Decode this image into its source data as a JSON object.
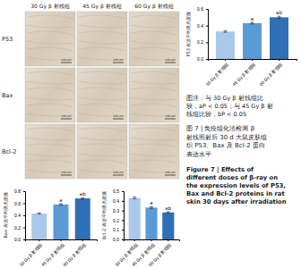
{
  "chart_data": [
    {
      "type": "bar",
      "y_label": "P53 表达平均吸光度值",
      "categories": [
        "30 Gy β 射线组",
        "45 Gy β 射线组",
        "60 Gy β 射线组"
      ],
      "values": [
        0.33,
        0.43,
        0.5
      ],
      "errors": [
        0.01,
        0.01,
        0.012
      ],
      "annotations": [
        null,
        "a",
        "ab"
      ],
      "colors": [
        "#a9c8ea",
        "#5b9bd5",
        "#2f6fb5"
      ],
      "ylim": [
        0,
        0.6
      ],
      "yticks": [
        {
          "value": 0,
          "label": "0.0"
        },
        0.2,
        0.4,
        0.6
      ]
    },
    {
      "type": "bar",
      "y_label": "Bax 表达平均吸光度值",
      "categories": [
        "30 Gy β 射线组",
        "45 Gy β 射线组",
        "60 Gy β 射线组"
      ],
      "values": [
        0.43,
        0.58,
        0.68
      ],
      "errors": [
        0.01,
        0.012,
        0.012
      ],
      "annotations": [
        null,
        "a",
        "ab"
      ],
      "colors": [
        "#a9c8ea",
        "#5b9bd5",
        "#2f6fb5"
      ],
      "ylim": [
        0,
        0.8
      ],
      "yticks": [
        {
          "value": 0,
          "label": "0.0"
        },
        0.2,
        0.4,
        0.6,
        0.8
      ]
    },
    {
      "type": "bar",
      "y_label": "Bcl-2 表达平均吸光度值",
      "categories": [
        "30 Gy β 射线组",
        "45 Gy β 射线组",
        "60 Gy β 射线组"
      ],
      "values": [
        0.43,
        0.33,
        0.28
      ],
      "errors": [
        0.01,
        0.008,
        0.008
      ],
      "annotations": [
        null,
        "a",
        "ab"
      ],
      "colors": [
        "#a9c8ea",
        "#5b9bd5",
        "#2f6fb5"
      ],
      "ylim": [
        0,
        0.5
      ],
      "yticks": [
        {
          "value": 0,
          "label": "0.0"
        },
        0.1,
        0.2,
        0.3,
        0.4,
        0.5
      ]
    }
  ],
  "micrographs": {
    "columns": [
      "30 Gy β 射线组",
      "45 Gy β 射线组",
      "60 Gy β 射线组"
    ],
    "rows": [
      "P53",
      "Bax",
      "Bcl-2"
    ],
    "scale_bar": "100 μm"
  },
  "note": [
    "图注：与 30 Gy β 射线组比",
    "较，aP < 0.05；与 45 Gy β 射",
    "线组比较，bP < 0.05"
  ],
  "caption_cn": [
    "图 7 | 免疫组化法检测 β",
    "射线照射后 30 d 大鼠皮肤组",
    "织 P53、Bax 及 Bcl-2 蛋白",
    "表达水平"
  ],
  "caption_en": [
    "Figure 7 | Effects of",
    "different doses of β-ray on",
    "the expression levels of P53,",
    "Bax and Bcl-2 proteins in rat",
    "skin 30 days after irradiation"
  ]
}
